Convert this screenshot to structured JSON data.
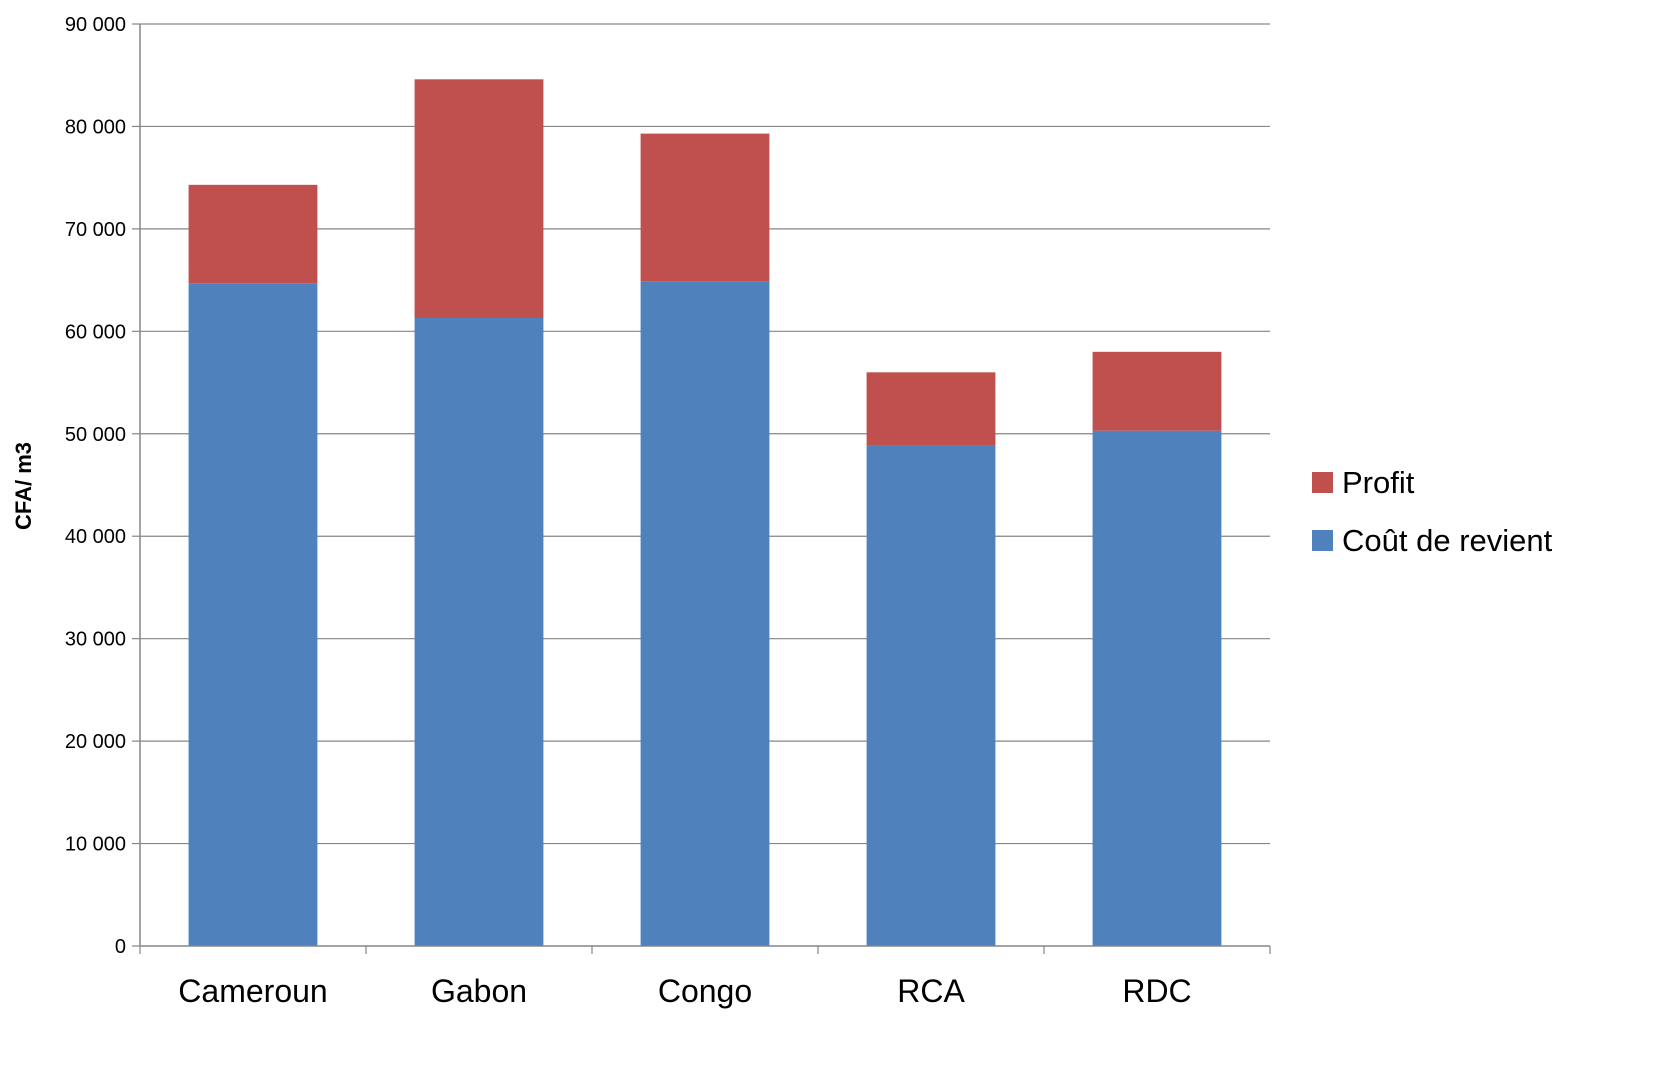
{
  "chart_data": {
    "type": "bar",
    "stacked": true,
    "title": "",
    "xlabel": "",
    "ylabel": "CFA/ m3",
    "ylim": [
      0,
      90000
    ],
    "yticks": [
      0,
      10000,
      20000,
      30000,
      40000,
      50000,
      60000,
      70000,
      80000,
      90000
    ],
    "ytick_labels": [
      "0",
      "10 000",
      "20 000",
      "30 000",
      "40 000",
      "50 000",
      "60 000",
      "70 000",
      "80 000",
      "90 000"
    ],
    "categories": [
      "Cameroun",
      "Gabon",
      "Congo",
      "RCA",
      "RDC"
    ],
    "series": [
      {
        "name": "Coût de revient",
        "color": "#4F81BD",
        "values": [
          64700,
          61300,
          64900,
          48900,
          50300
        ]
      },
      {
        "name": "Profit",
        "color": "#C0504D",
        "values": [
          9600,
          23300,
          14400,
          7100,
          7700
        ]
      }
    ],
    "grid": true,
    "legend": {
      "position": "right",
      "order": [
        "Profit",
        "Coût de revient"
      ]
    }
  }
}
